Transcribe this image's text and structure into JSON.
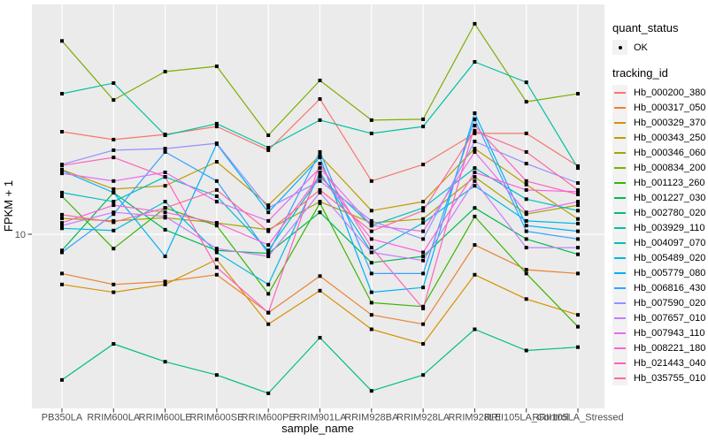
{
  "chart_data": {
    "type": "line",
    "xlabel": "sample_name",
    "ylabel": "FPKM + 1",
    "y_scale": "log10",
    "y_tick_label": "10",
    "y_tick_value": 10,
    "grid": "major-on-white",
    "legend_position": "right",
    "x": [
      "PB350LA",
      "RRIM600LA",
      "RRIM600LE",
      "RRIM600SE",
      "RRIM600PE",
      "RRIM901LA",
      "RRIM928BA",
      "RRIM928LA",
      "RRIM928LE",
      "RRII105LA_Control",
      "RRII105LA_Stressed"
    ],
    "legend": {
      "quant_status_title": "quant_status",
      "quant_status_items": [
        "OK"
      ],
      "tracking_title": "tracking_id"
    },
    "series": [
      {
        "id": "Hb_000200_380",
        "color": "#F8766D",
        "values": [
          38.0,
          34.3,
          36.7,
          40.7,
          29.9,
          58.2,
          20.0,
          24.8,
          37.2,
          37.2,
          24.3
        ]
      },
      {
        "id": "Hb_000317_050",
        "color": "#EA8331",
        "values": [
          6.0,
          5.2,
          5.4,
          5.9,
          3.6,
          5.8,
          3.5,
          3.1,
          8.7,
          6.3,
          6.0
        ]
      },
      {
        "id": "Hb_000329_370",
        "color": "#D89000",
        "values": [
          5.2,
          4.7,
          5.2,
          7.2,
          3.1,
          4.8,
          2.9,
          2.4,
          5.9,
          4.3,
          3.5
        ]
      },
      {
        "id": "Hb_000343_250",
        "color": "#C09B00",
        "values": [
          23.2,
          18.0,
          18.8,
          25.7,
          14.6,
          27.9,
          13.6,
          15.3,
          30.5,
          19.1,
          12.2
        ]
      },
      {
        "id": "Hb_000346_060",
        "color": "#A3A500",
        "values": [
          12.3,
          11.9,
          12.4,
          11.6,
          10.6,
          15.3,
          11.6,
          12.2,
          21.1,
          13.0,
          14.6
        ]
      },
      {
        "id": "Hb_000834_200",
        "color": "#7CAE00",
        "values": [
          124,
          57.5,
          83.2,
          89.1,
          36.3,
          74.1,
          44.2,
          44.7,
          155,
          56.2,
          62.4
        ]
      },
      {
        "id": "Hb_001123_260",
        "color": "#39B600",
        "values": [
          16.4,
          8.3,
          14.1,
          11.2,
          4.6,
          15.0,
          4.1,
          3.9,
          12.6,
          6.0,
          3.0
        ]
      },
      {
        "id": "Hb_001227_030",
        "color": "#00BB4E",
        "values": [
          8.1,
          17.2,
          10.6,
          8.1,
          7.8,
          13.3,
          6.9,
          7.5,
          14.1,
          9.4,
          7.7
        ]
      },
      {
        "id": "Hb_002780_020",
        "color": "#00BF7D",
        "values": [
          1.5,
          2.4,
          1.9,
          1.6,
          1.26,
          2.6,
          1.3,
          1.6,
          2.9,
          2.2,
          2.3
        ]
      },
      {
        "id": "Hb_003929_110",
        "color": "#00C1A3",
        "values": [
          62.4,
          71.6,
          36.3,
          42.2,
          30.9,
          44.2,
          37.2,
          40.7,
          94.4,
          72.4,
          23.7
        ]
      },
      {
        "id": "Hb_004097_070",
        "color": "#00BFC4",
        "values": [
          17.2,
          15.3,
          21.1,
          16.4,
          8.1,
          21.1,
          11.2,
          14.1,
          23.7,
          15.8,
          13.6
        ]
      },
      {
        "id": "Hb_005489_020",
        "color": "#00BAE0",
        "values": [
          10.8,
          10.5,
          15.3,
          7.9,
          5.2,
          22.4,
          7.9,
          11.6,
          18.8,
          11.9,
          11.5
        ]
      },
      {
        "id": "Hb_005779_080",
        "color": "#00B0F6",
        "values": [
          22.9,
          17.2,
          7.5,
          32.4,
          13.3,
          27.2,
          4.7,
          5.0,
          48.4,
          11.2,
          10.4
        ]
      },
      {
        "id": "Hb_006816_430",
        "color": "#35A2FF",
        "values": [
          7.9,
          13.0,
          29.2,
          20.0,
          7.8,
          29.2,
          6.0,
          6.0,
          44.7,
          10.4,
          9.4
        ]
      },
      {
        "id": "Hb_007590_020",
        "color": "#9590FF",
        "values": [
          24.8,
          29.9,
          30.5,
          32.7,
          14.1,
          20.0,
          11.9,
          9.4,
          33.5,
          25.1,
          19.5
        ]
      },
      {
        "id": "Hb_007657_010",
        "color": "#C77CFF",
        "values": [
          11.2,
          13.3,
          12.6,
          8.3,
          7.5,
          17.2,
          7.9,
          7.1,
          20.0,
          8.4,
          8.4
        ]
      },
      {
        "id": "Hb_007943_110",
        "color": "#E76BF3",
        "values": [
          22.1,
          20.0,
          22.4,
          15.3,
          11.9,
          23.7,
          11.2,
          10.4,
          29.2,
          13.3,
          15.3
        ]
      },
      {
        "id": "Hb_008221_180",
        "color": "#FA62DB",
        "values": [
          11.6,
          14.6,
          13.3,
          11.6,
          8.7,
          21.6,
          9.4,
          7.9,
          22.4,
          17.8,
          17.4
        ]
      },
      {
        "id": "Hb_021443_040",
        "color": "#FF62BC",
        "values": [
          24.5,
          27.2,
          21.1,
          6.5,
          3.6,
          25.1,
          8.4,
          3.8,
          41.2,
          20.0,
          16.8
        ]
      },
      {
        "id": "Hb_035755_010",
        "color": "#FF6A98",
        "values": [
          12.9,
          11.7,
          14.1,
          17.8,
          10.4,
          17.8,
          10.4,
          13.6,
          38.5,
          29.2,
          17.8
        ]
      }
    ]
  },
  "colors": {
    "panel_bg": "#EBEBEB",
    "gridline": "#FFFFFF",
    "tick_mark": "#333333",
    "tick_label": "#4D4D4D",
    "marker": "#000000",
    "legend_key_bg": "#F2F2F2"
  }
}
